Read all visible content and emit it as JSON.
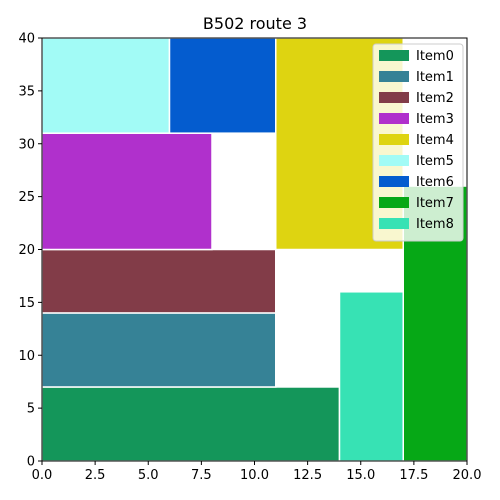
{
  "chart_data": {
    "type": "bar",
    "title": "B502 route 3",
    "xlabel": "",
    "ylabel": "",
    "xlim": [
      0,
      20
    ],
    "ylim": [
      0,
      40
    ],
    "xticks": [
      "0.0",
      "2.5",
      "5.0",
      "7.5",
      "10.0",
      "12.5",
      "15.0",
      "17.5",
      "20.0"
    ],
    "yticks": [
      "0",
      "5",
      "10",
      "15",
      "20",
      "25",
      "30",
      "35",
      "40"
    ],
    "grid": false,
    "legend_position": "top-right",
    "items": [
      {
        "name": "Item0",
        "x": 0,
        "y": 0,
        "w": 14,
        "h": 7,
        "color": "#14965a"
      },
      {
        "name": "Item1",
        "x": 0,
        "y": 7,
        "w": 11,
        "h": 7,
        "color": "#368296"
      },
      {
        "name": "Item2",
        "x": 0,
        "y": 14,
        "w": 11,
        "h": 6,
        "color": "#823c48"
      },
      {
        "name": "Item3",
        "x": 0,
        "y": 20,
        "w": 8,
        "h": 11,
        "color": "#b030cc"
      },
      {
        "name": "Item4",
        "x": 11,
        "y": 20,
        "w": 6,
        "h": 20,
        "color": "#ded411"
      },
      {
        "name": "Item5",
        "x": 0,
        "y": 31,
        "w": 6,
        "h": 9,
        "color": "#a2fbf6"
      },
      {
        "name": "Item6",
        "x": 6,
        "y": 31,
        "w": 5,
        "h": 9,
        "color": "#045ccf"
      },
      {
        "name": "Item7",
        "x": 17,
        "y": 0,
        "w": 3,
        "h": 26,
        "color": "#06a816"
      },
      {
        "name": "Item8",
        "x": 14,
        "y": 0,
        "w": 3,
        "h": 16,
        "color": "#37e2b4"
      }
    ]
  }
}
